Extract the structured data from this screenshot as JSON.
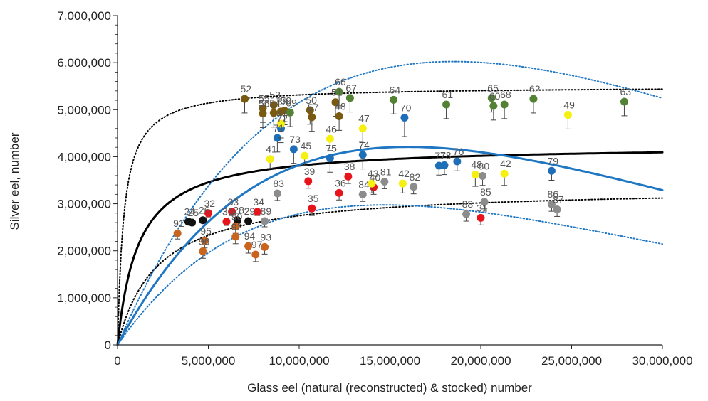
{
  "chart_data": {
    "type": "scatter",
    "title": "",
    "xlabel": "Glass eel (natural (reconstructed) & stocked) number",
    "ylabel": "Silver eel, number",
    "xlim": [
      0,
      30000000
    ],
    "ylim": [
      0,
      7000000
    ],
    "x_ticks": [
      "0",
      "5,000,000",
      "10,000,000",
      "15,000,000",
      "20,000,000",
      "25,000,000",
      "30,000,000"
    ],
    "y_ticks": [
      "0",
      "1,000,000",
      "2,000,000",
      "3,000,000",
      "4,000,000",
      "5,000,000",
      "6,000,000",
      "7,000,000"
    ],
    "grid": false,
    "legend": "none",
    "colors": {
      "black": "#111111",
      "red": "#e8141b",
      "orange": "#c8641e",
      "brown": "#7a5a10",
      "olive": "#548235",
      "blue": "#1f6fb8",
      "yellow": "#f5f010",
      "gray": "#8c8c8c",
      "fit_black": "#000000",
      "fit_blue": "#1f77c4"
    },
    "series": [
      {
        "color": "black",
        "points": [
          {
            "label": "24",
            "x": 3900000,
            "y": 2620000,
            "err": 60000
          },
          {
            "label": "25",
            "x": 4100000,
            "y": 2600000,
            "err": 60000
          },
          {
            "label": "26",
            "x": 4700000,
            "y": 2650000,
            "err": 60000
          },
          {
            "label": "28",
            "x": 6600000,
            "y": 2650000,
            "err": 60000
          },
          {
            "label": "29",
            "x": 7200000,
            "y": 2630000,
            "err": 60000
          }
        ]
      },
      {
        "color": "red",
        "points": [
          {
            "label": "32",
            "x": 5000000,
            "y": 2800000,
            "err": 80000
          },
          {
            "label": "30",
            "x": 6000000,
            "y": 2620000,
            "err": 80000
          },
          {
            "label": "33",
            "x": 6300000,
            "y": 2830000,
            "err": 80000
          },
          {
            "label": "34",
            "x": 7700000,
            "y": 2830000,
            "err": 80000
          },
          {
            "label": "35",
            "x": 10700000,
            "y": 2900000,
            "err": 150000
          },
          {
            "label": "36",
            "x": 12200000,
            "y": 3230000,
            "err": 150000
          },
          {
            "label": "38",
            "x": 12700000,
            "y": 3580000,
            "err": 150000
          },
          {
            "label": "39",
            "x": 10500000,
            "y": 3480000,
            "err": 150000
          },
          {
            "label": "40",
            "x": 14100000,
            "y": 3350000,
            "err": 150000
          },
          {
            "label": "31",
            "x": 20000000,
            "y": 2700000,
            "err": 150000
          }
        ]
      },
      {
        "color": "orange",
        "points": [
          {
            "label": "91",
            "x": 3300000,
            "y": 2370000,
            "err": 120000
          },
          {
            "label": "95",
            "x": 4800000,
            "y": 2210000,
            "err": 150000
          },
          {
            "label": "96",
            "x": 4700000,
            "y": 1990000,
            "err": 150000
          },
          {
            "label": "90",
            "x": 6500000,
            "y": 2520000,
            "err": 150000
          },
          {
            "label": "94",
            "x": 7200000,
            "y": 2100000,
            "err": 150000
          },
          {
            "label": "97",
            "x": 7600000,
            "y": 1920000,
            "err": 150000
          },
          {
            "label": "93",
            "x": 8100000,
            "y": 2080000,
            "err": 150000
          },
          {
            "label": "92",
            "x": 6500000,
            "y": 2300000,
            "err": 150000
          }
        ]
      },
      {
        "color": "brown",
        "points": [
          {
            "label": "52",
            "x": 7000000,
            "y": 5230000,
            "err": 300000
          },
          {
            "label": "55",
            "x": 8000000,
            "y": 5030000,
            "err": 300000
          },
          {
            "label": "53",
            "x": 8600000,
            "y": 5100000,
            "err": 300000
          },
          {
            "label": "56",
            "x": 8000000,
            "y": 4920000,
            "err": 300000
          },
          {
            "label": "54",
            "x": 8600000,
            "y": 4930000,
            "err": 300000
          },
          {
            "label": "58",
            "x": 9000000,
            "y": 4960000,
            "err": 300000
          },
          {
            "label": "59",
            "x": 9200000,
            "y": 4980000,
            "err": 300000
          },
          {
            "label": "50",
            "x": 10600000,
            "y": 4990000,
            "err": 300000
          },
          {
            "label": "57",
            "x": 10700000,
            "y": 4840000,
            "err": 300000
          },
          {
            "label": "51",
            "x": 12000000,
            "y": 5160000,
            "err": 300000
          },
          {
            "label": "48",
            "x": 12200000,
            "y": 4860000,
            "err": 300000
          }
        ]
      },
      {
        "color": "olive",
        "points": [
          {
            "label": "69",
            "x": 9500000,
            "y": 4940000,
            "err": 300000
          },
          {
            "label": "66",
            "x": 12200000,
            "y": 5380000,
            "err": 300000
          },
          {
            "label": "67",
            "x": 12800000,
            "y": 5250000,
            "err": 300000
          },
          {
            "label": "64",
            "x": 15200000,
            "y": 5210000,
            "err": 300000
          },
          {
            "label": "61",
            "x": 18100000,
            "y": 5110000,
            "err": 300000
          },
          {
            "label": "65",
            "x": 20600000,
            "y": 5250000,
            "err": 300000
          },
          {
            "label": "60",
            "x": 20700000,
            "y": 5080000,
            "err": 300000
          },
          {
            "label": "68",
            "x": 21300000,
            "y": 5110000,
            "err": 300000
          },
          {
            "label": "62",
            "x": 22900000,
            "y": 5230000,
            "err": 300000
          },
          {
            "label": "63",
            "x": 27900000,
            "y": 5170000,
            "err": 300000
          }
        ]
      },
      {
        "color": "blue",
        "points": [
          {
            "label": "71",
            "x": 8800000,
            "y": 4400000,
            "err": 300000
          },
          {
            "label": "72",
            "x": 9000000,
            "y": 4600000,
            "err": 300000
          },
          {
            "label": "73",
            "x": 9700000,
            "y": 4160000,
            "err": 300000
          },
          {
            "label": "75",
            "x": 11700000,
            "y": 3970000,
            "err": 300000
          },
          {
            "label": "74",
            "x": 13500000,
            "y": 4040000,
            "err": 300000
          },
          {
            "label": "70",
            "x": 15800000,
            "y": 4830000,
            "err": 400000
          },
          {
            "label": "77",
            "x": 17700000,
            "y": 3810000,
            "err": 200000
          },
          {
            "label": "78",
            "x": 18000000,
            "y": 3820000,
            "err": 200000
          },
          {
            "label": "76",
            "x": 18700000,
            "y": 3900000,
            "err": 200000
          },
          {
            "label": "79",
            "x": 23900000,
            "y": 3700000,
            "err": 200000
          }
        ]
      },
      {
        "color": "yellow",
        "points": [
          {
            "label": "41",
            "x": 8400000,
            "y": 3950000,
            "err": 200000
          },
          {
            "label": "44",
            "x": 9000000,
            "y": 4700000,
            "err": 300000
          },
          {
            "label": "45",
            "x": 10300000,
            "y": 4020000,
            "err": 200000
          },
          {
            "label": "46",
            "x": 11700000,
            "y": 4380000,
            "err": 250000
          },
          {
            "label": "47",
            "x": 13500000,
            "y": 4600000,
            "err": 300000
          },
          {
            "label": "43",
            "x": 14000000,
            "y": 3430000,
            "err": 200000
          },
          {
            "label": "42",
            "x": 15700000,
            "y": 3430000,
            "err": 200000
          },
          {
            "label": "48",
            "x": 19700000,
            "y": 3620000,
            "err": 250000
          },
          {
            "label": "42",
            "x": 21300000,
            "y": 3640000,
            "err": 250000
          },
          {
            "label": "49",
            "x": 24800000,
            "y": 4890000,
            "err": 300000
          }
        ]
      },
      {
        "color": "gray",
        "points": [
          {
            "label": "89",
            "x": 8100000,
            "y": 2630000,
            "err": 120000
          },
          {
            "label": "83",
            "x": 8800000,
            "y": 3220000,
            "err": 150000
          },
          {
            "label": "84",
            "x": 13500000,
            "y": 3200000,
            "err": 150000
          },
          {
            "label": "81",
            "x": 14700000,
            "y": 3470000,
            "err": 150000
          },
          {
            "label": "82",
            "x": 16300000,
            "y": 3360000,
            "err": 150000
          },
          {
            "label": "88",
            "x": 19200000,
            "y": 2780000,
            "err": 150000
          },
          {
            "label": "80",
            "x": 20100000,
            "y": 3590000,
            "err": 200000
          },
          {
            "label": "85",
            "x": 20200000,
            "y": 3040000,
            "err": 150000
          },
          {
            "label": "86",
            "x": 23900000,
            "y": 2990000,
            "err": 150000
          },
          {
            "label": "87",
            "x": 24200000,
            "y": 2880000,
            "err": 150000
          }
        ]
      }
    ],
    "fits": [
      {
        "style": "solid",
        "color": "fit_black",
        "model": "beverton_holt",
        "a": 4250000,
        "b": 1150000
      },
      {
        "style": "dotted",
        "color": "fit_black",
        "model": "beverton_holt",
        "a": 5500000,
        "b": 350000
      },
      {
        "style": "dotted",
        "color": "fit_black",
        "model": "beverton_holt",
        "a": 3350000,
        "b": 2200000
      },
      {
        "style": "solid",
        "color": "fit_blue",
        "model": "ricker",
        "a": 0.715,
        "peak": 16000000
      },
      {
        "style": "dotted",
        "color": "fit_blue",
        "model": "ricker",
        "a": 0.885,
        "peak": 18500000
      },
      {
        "style": "dotted",
        "color": "fit_blue",
        "model": "ricker",
        "a": 0.55,
        "peak": 14700000
      }
    ]
  }
}
